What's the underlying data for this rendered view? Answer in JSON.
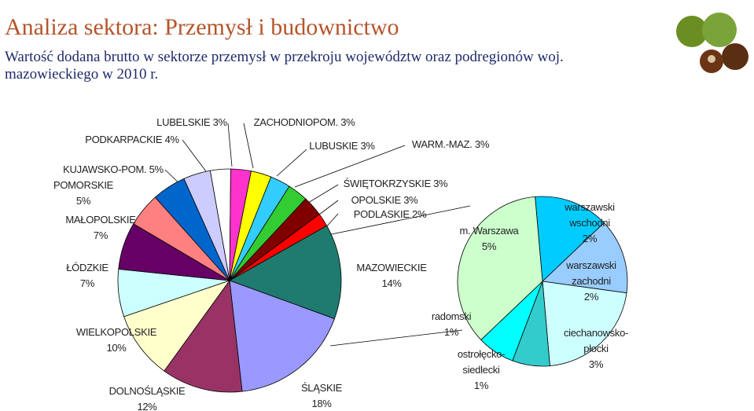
{
  "header": {
    "title": "Analiza sektora: Przemysł i budownictwo",
    "subtitle": "Wartość dodana brutto w sektorze przemysł w przekroju województw oraz podregionów woj. mazowieckiego w 2010 r."
  },
  "chart_data": [
    {
      "type": "pie",
      "categories": [
        "LUBELSKIE",
        "ZACHODNIOPOM.",
        "LUBUSKIE",
        "WARM.-MAZ.",
        "ŚWIĘTOKRZYSKIE",
        "OPOLSKIE",
        "PODLASKIE",
        "MAZOWIECKIE",
        "ŚLĄSKIE",
        "DOLNOŚLĄSKIE",
        "WIELKOPOLSKIE",
        "ŁÓDZKIE",
        "MAŁOPOLSKIE",
        "POMORSKIE",
        "KUJAWSKO-POM.",
        "PODKARPACKIE"
      ],
      "values": [
        3,
        3,
        3,
        3,
        3,
        3,
        2,
        14,
        18,
        12,
        10,
        7,
        7,
        5,
        5,
        4
      ],
      "value_labels": [
        "3%",
        "3%",
        "3%",
        "3%",
        "3%",
        "3%",
        "2%",
        "14%",
        "18%",
        "12%",
        "10%",
        "7%",
        "7%",
        "5%",
        "5%",
        "4%"
      ],
      "colors": [
        "#ffffff",
        "#ff33cc",
        "#ffff00",
        "#33ccff",
        "#33cc33",
        "#800000",
        "#ff0000",
        "#1f7a6f",
        "#9999ff",
        "#993366",
        "#ffffcc",
        "#ccffff",
        "#660066",
        "#ff8080",
        "#0066cc",
        "#ccccff"
      ]
    },
    {
      "type": "pie",
      "categories": [
        "warszawski wschodni",
        "warszawski zachodni",
        "ciechanowsko-płocki",
        "ostrołęcko-siedlecki",
        "radomski",
        "m. Warszawa"
      ],
      "values": [
        2,
        2,
        3,
        1,
        1,
        5
      ],
      "value_labels": [
        "2%",
        "2%",
        "3%",
        "1%",
        "1%",
        "5%"
      ],
      "colors": [
        "#00ccff",
        "#99ccff",
        "#ccffff",
        "#33cccc",
        "#00ffff",
        "#ccffcc"
      ]
    }
  ]
}
